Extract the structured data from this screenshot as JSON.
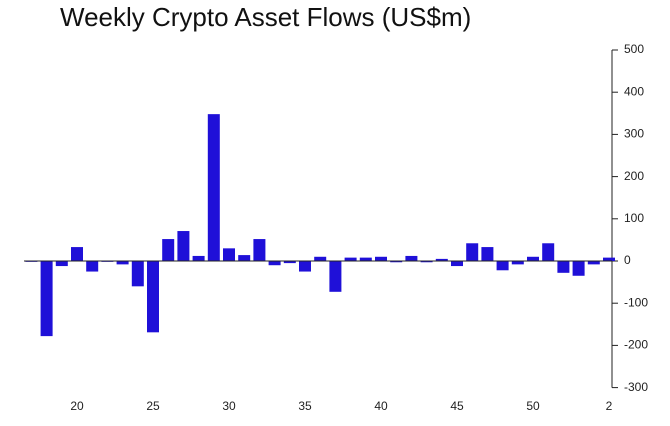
{
  "chart_data": {
    "type": "bar",
    "title": "Weekly Crypto Asset Flows (US$m)",
    "categories": [
      null,
      null,
      null,
      "20",
      null,
      null,
      null,
      null,
      "25",
      null,
      null,
      null,
      null,
      "30",
      null,
      null,
      null,
      null,
      "35",
      null,
      null,
      null,
      null,
      "40",
      null,
      null,
      null,
      null,
      "45",
      null,
      null,
      null,
      null,
      "50",
      null,
      null,
      null,
      null,
      "2"
    ],
    "values": [
      -2,
      -178,
      -12,
      33,
      -25,
      -2,
      -8,
      -60,
      -169,
      52,
      71,
      12,
      348,
      30,
      14,
      52,
      -10,
      -5,
      -25,
      10,
      -73,
      8,
      8,
      10,
      -3,
      12,
      -3,
      5,
      -12,
      42,
      33,
      -22,
      -8,
      10,
      42,
      -28,
      -35,
      -8,
      8
    ],
    "color": "#1f10d8",
    "ylim": [
      -300,
      500
    ],
    "yticks": [
      -300,
      -200,
      -100,
      0,
      100,
      200,
      300,
      400,
      500
    ],
    "grid": false,
    "y_axis_side": "right"
  }
}
